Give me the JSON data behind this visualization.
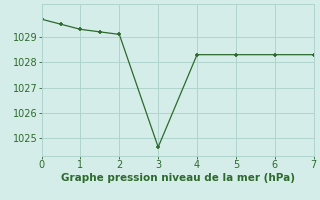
{
  "x": [
    0,
    0.5,
    1,
    1.5,
    2,
    3,
    4,
    5,
    6,
    7
  ],
  "y": [
    1029.7,
    1029.5,
    1029.3,
    1029.2,
    1029.1,
    1024.65,
    1028.3,
    1028.3,
    1028.3,
    1028.3
  ],
  "line_color": "#2d6a2d",
  "marker": "+",
  "bg_color": "#d5ede8",
  "grid_color": "#b0d4ce",
  "xlabel": "Graphe pression niveau de la mer (hPa)",
  "xlabel_color": "#2d6a2d",
  "xlabel_fontsize": 7.5,
  "xlim": [
    0,
    7
  ],
  "ylim": [
    1024.3,
    1030.3
  ],
  "yticks": [
    1025,
    1026,
    1027,
    1028,
    1029
  ],
  "xticks": [
    0,
    1,
    2,
    3,
    4,
    5,
    6,
    7
  ],
  "tick_color": "#2d6a2d",
  "tick_fontsize": 7
}
